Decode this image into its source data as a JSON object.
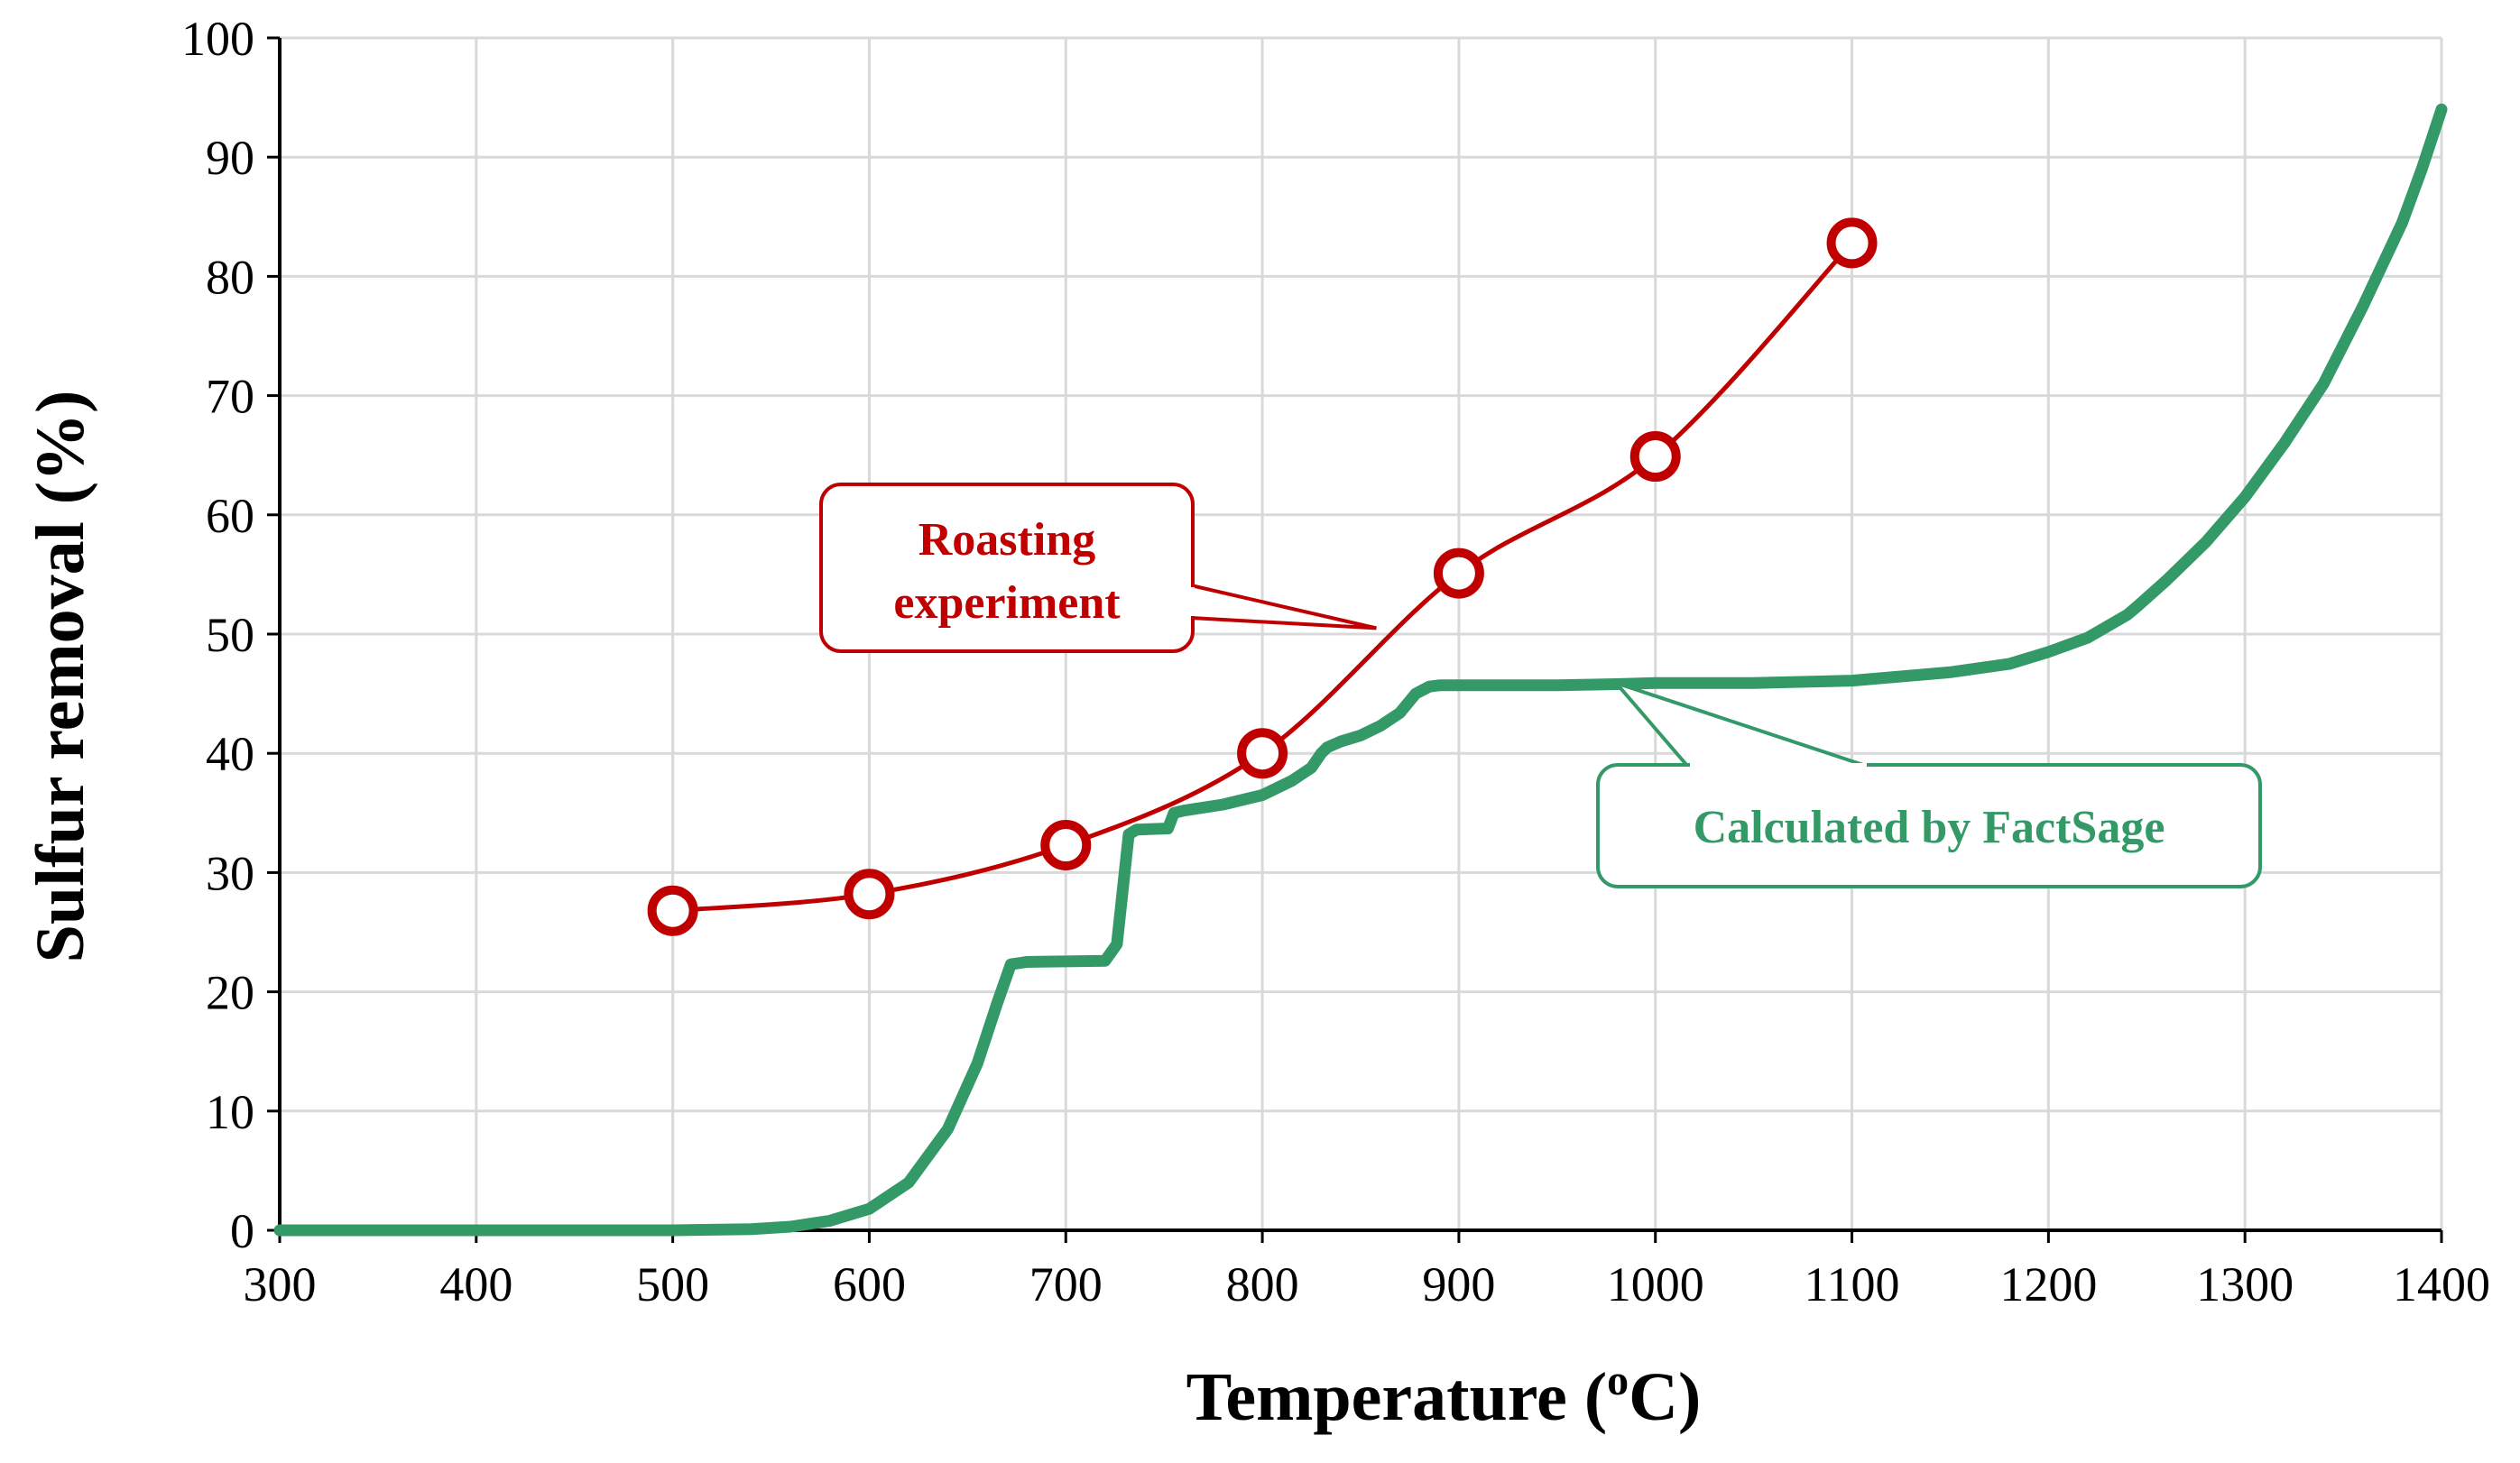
{
  "chart_data": {
    "type": "line",
    "title": "",
    "xlabel": "Temperature (",
    "xlabel_sup": "o",
    "xlabel_unit": "C)",
    "ylabel": "Sulfur removal (%)",
    "xlim": [
      300,
      1400
    ],
    "ylim": [
      0,
      100
    ],
    "x_ticks": [
      300,
      400,
      500,
      600,
      700,
      800,
      900,
      1000,
      1100,
      1200,
      1300,
      1400
    ],
    "y_ticks": [
      0,
      10,
      20,
      30,
      40,
      50,
      60,
      70,
      80,
      90,
      100
    ],
    "grid": true,
    "colors": {
      "experiment": "#c00000",
      "factsage": "#339966",
      "grid": "#d9d9d9",
      "axis": "#000000"
    },
    "series": [
      {
        "name": "Roasting experiment",
        "label_lines": [
          "Roasting",
          "experiment"
        ],
        "marker": "open-circle",
        "x": [
          500,
          600,
          700,
          800,
          900,
          1000,
          1100
        ],
        "y": [
          26.8,
          28.2,
          32.3,
          40.0,
          55.1,
          64.9,
          82.8
        ]
      },
      {
        "name": "Calculated by FactSage",
        "label_lines": [
          "Calculated by FactSage"
        ],
        "marker": "none",
        "x": [
          300,
          500,
          540,
          560,
          580,
          600,
          620,
          640,
          655,
          665,
          672,
          680,
          720,
          726,
          732,
          736,
          752,
          755,
          760,
          780,
          800,
          815,
          825,
          830,
          833,
          840,
          850,
          860,
          870,
          878,
          885,
          890,
          900,
          950,
          980,
          1000,
          1050,
          1100,
          1150,
          1180,
          1200,
          1220,
          1240,
          1245,
          1260,
          1280,
          1300,
          1320,
          1340,
          1360,
          1380,
          1390,
          1400
        ],
        "y": [
          0,
          0,
          0.1,
          0.3,
          0.8,
          1.8,
          4,
          8.5,
          14,
          19,
          22.3,
          22.5,
          22.6,
          24,
          33.2,
          33.6,
          33.7,
          35,
          35.2,
          35.7,
          36.5,
          37.7,
          38.8,
          40,
          40.5,
          41,
          41.5,
          42.3,
          43.4,
          45,
          45.6,
          45.7,
          45.7,
          45.7,
          45.8,
          45.9,
          45.9,
          46.1,
          46.8,
          47.5,
          48.5,
          49.7,
          51.6,
          52.3,
          54.5,
          57.7,
          61.5,
          66,
          71,
          77.5,
          84.5,
          89,
          94
        ]
      }
    ]
  }
}
